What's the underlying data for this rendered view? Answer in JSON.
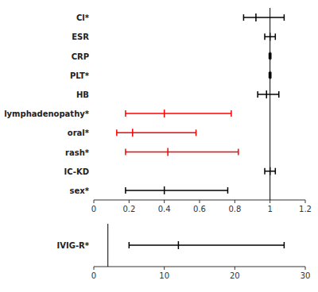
{
  "chart_data": [
    {
      "type": "errorbar",
      "categories": [
        "Cl*",
        "ESR",
        "CRP",
        "PLT*",
        "HB",
        "lymphadenopathy*",
        "oral*",
        "rash*",
        "IC-KD",
        "sex*"
      ],
      "values": [
        0.92,
        1.0,
        1.0,
        1.0,
        0.98,
        0.4,
        0.22,
        0.42,
        1.0,
        0.4
      ],
      "lo": [
        0.85,
        0.97,
        0.995,
        0.995,
        0.93,
        0.18,
        0.13,
        0.18,
        0.97,
        0.18
      ],
      "hi": [
        1.08,
        1.03,
        1.005,
        1.005,
        1.05,
        0.78,
        0.58,
        0.82,
        1.03,
        0.76
      ],
      "colors": [
        "black",
        "black",
        "black",
        "black",
        "black",
        "red",
        "red",
        "red",
        "black",
        "black"
      ],
      "xlim": [
        0,
        1.2
      ],
      "xticks": [
        0,
        0.2,
        0.4,
        0.6,
        0.8,
        1,
        1.2
      ],
      "vline": 1.0
    },
    {
      "type": "errorbar",
      "categories": [
        "IVIG-R*"
      ],
      "values": [
        12.0
      ],
      "lo": [
        5.0
      ],
      "hi": [
        27.0
      ],
      "colors": [
        "black"
      ],
      "xlim": [
        0,
        30
      ],
      "xticks": [
        0,
        10,
        20,
        30
      ],
      "vline": 2.0
    }
  ]
}
